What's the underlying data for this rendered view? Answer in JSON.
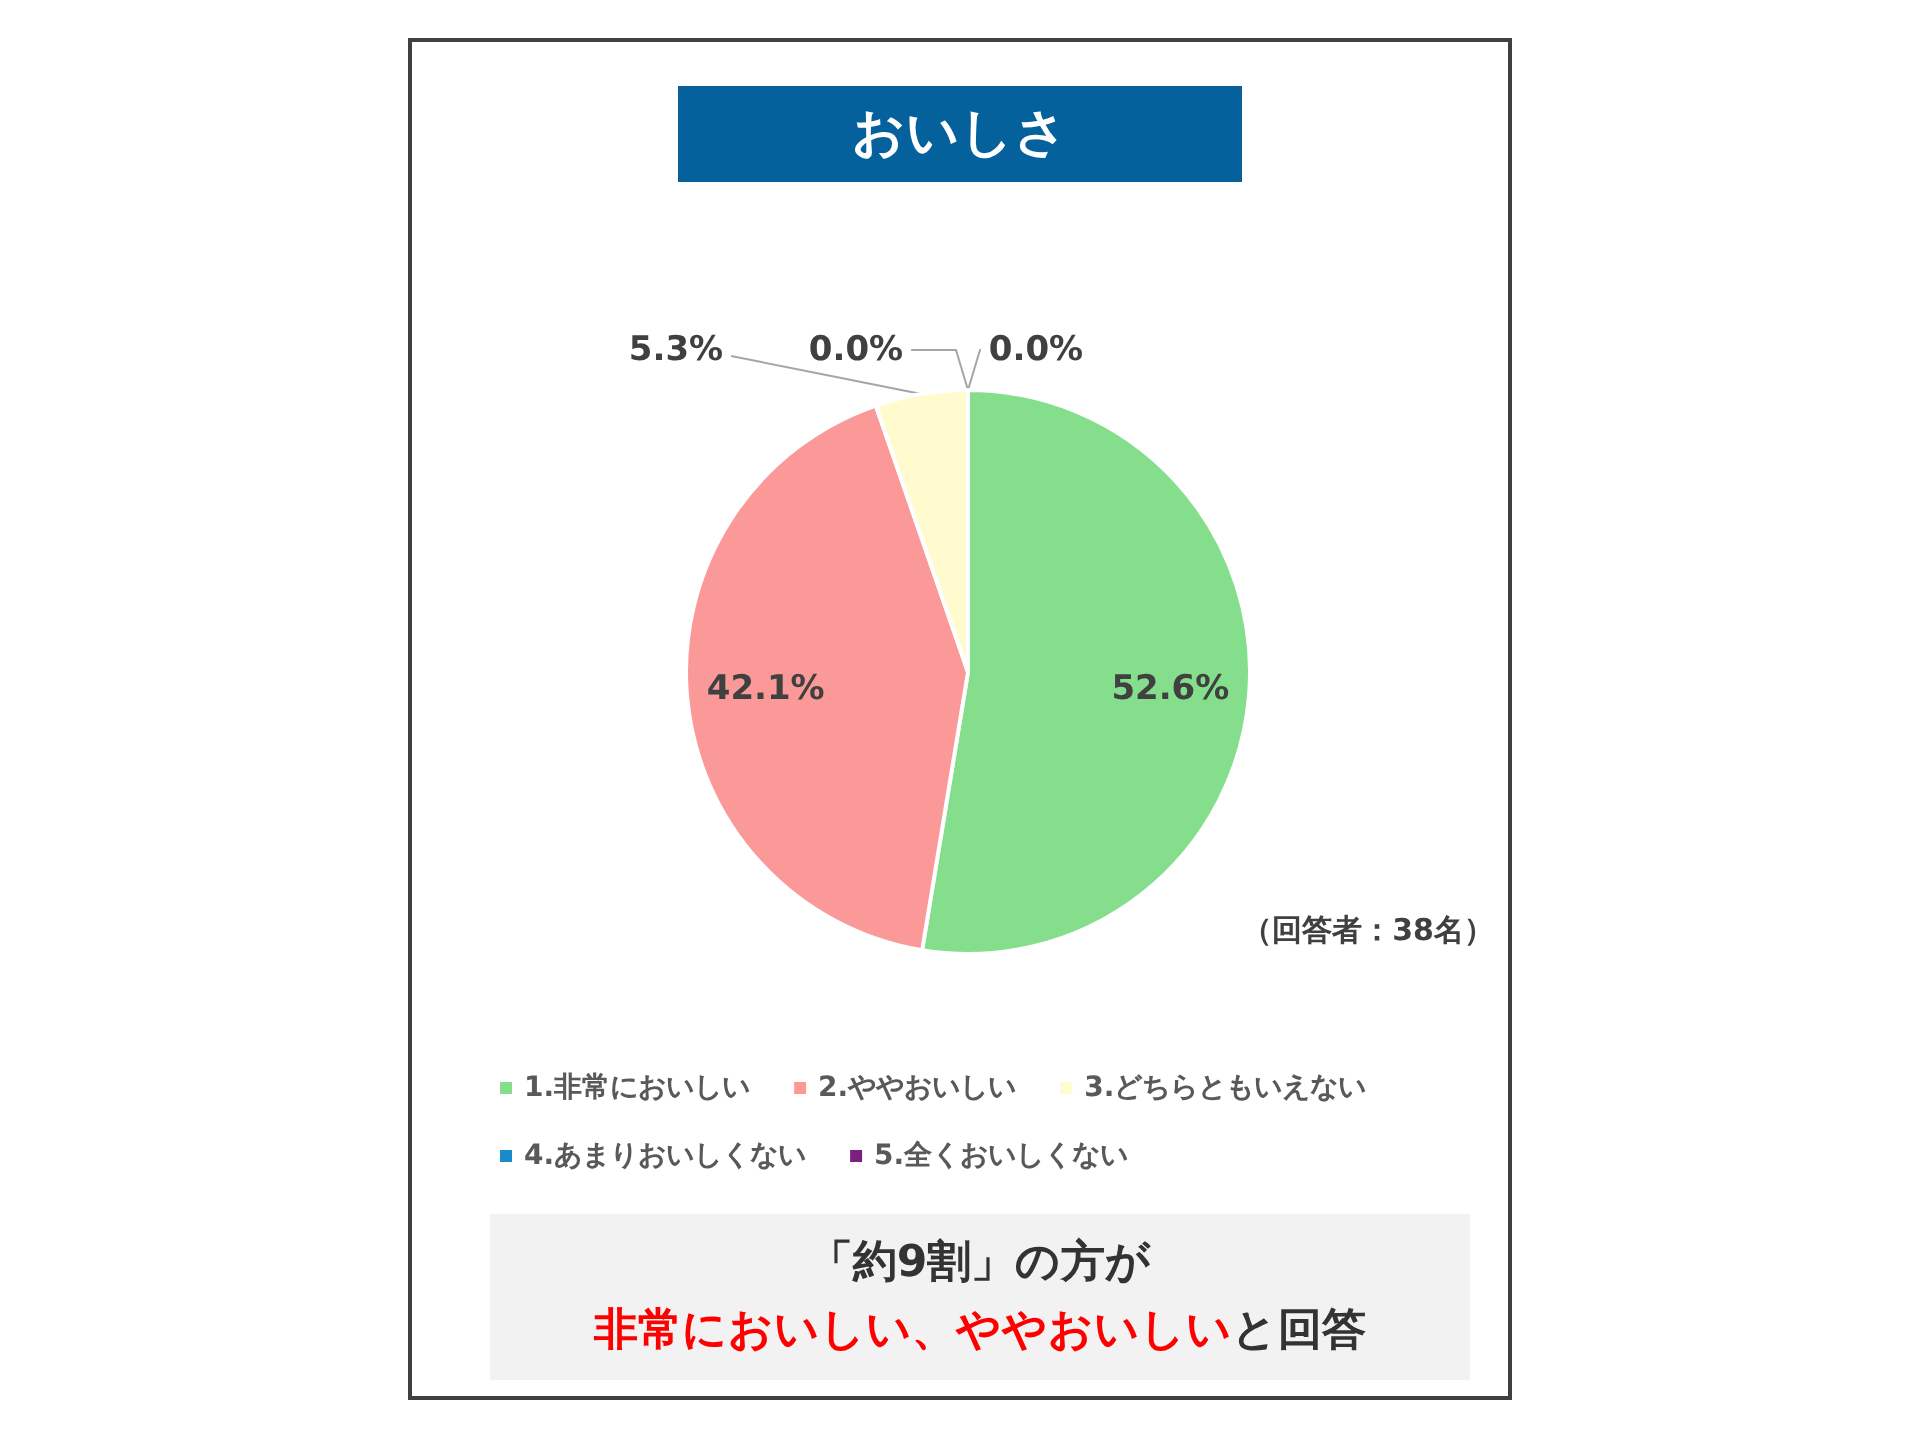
{
  "chart_data": {
    "type": "pie",
    "title": "おいしさ",
    "categories": [
      "1.非常においしい",
      "2.ややおいしい",
      "3.どちらともいえない",
      "4.あまりおいしくない",
      "5.全くおいしくない"
    ],
    "values": [
      52.6,
      42.1,
      5.3,
      0.0,
      0.0
    ],
    "colors": [
      "#84de8c",
      "#fb9999",
      "#fffbcf",
      "#1b8acb",
      "#7b2080"
    ],
    "value_labels": [
      "52.6%",
      "42.1%",
      "5.3%",
      "0.0%",
      "0.0%"
    ],
    "legend": "bottom",
    "annotations": [
      "（回答者：38名）",
      "「約9割」の方が",
      "非常においしい、ややおいしい",
      "と回答"
    ]
  }
}
